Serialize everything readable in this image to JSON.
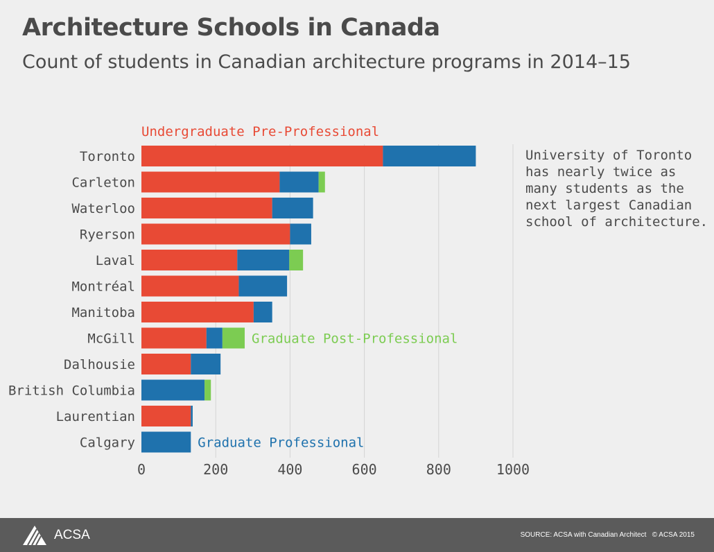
{
  "header": {
    "title": "Architecture Schools in Canada",
    "subtitle": "Count of students in Canadian architecture programs in 2014–15"
  },
  "annotation": {
    "lines": [
      "University of Toronto",
      "has nearly twice as",
      "many students as the",
      "next largest Canadian",
      "school of architecture."
    ]
  },
  "footer": {
    "logo_text": "ACSA",
    "source": "SOURCE: ACSA with Canadian Architect",
    "copyright": "© ACSA 2015"
  },
  "chart_data": {
    "type": "bar",
    "orientation": "horizontal",
    "stacked": true,
    "categories": [
      "Toronto",
      "Carleton",
      "Waterloo",
      "Ryerson",
      "Laval",
      "Montréal",
      "Manitoba",
      "McGill",
      "Dalhousie",
      "British Columbia",
      "Laurentian",
      "Calgary"
    ],
    "series": [
      {
        "name": "Undergraduate Pre-Professional",
        "color": "#e84a35",
        "values": [
          650,
          372,
          352,
          400,
          258,
          262,
          302,
          175,
          133,
          0,
          133,
          0
        ]
      },
      {
        "name": "Graduate Professional",
        "color": "#1f72ad",
        "values": [
          250,
          105,
          110,
          57,
          140,
          130,
          50,
          43,
          80,
          170,
          5,
          133
        ]
      },
      {
        "name": "Graduate Post-Professional",
        "color": "#7ccc52",
        "values": [
          0,
          17,
          0,
          0,
          37,
          0,
          0,
          60,
          0,
          17,
          0,
          0
        ]
      }
    ],
    "series_labels": [
      {
        "text": "Undergraduate Pre-Professional",
        "color": "#e84a35",
        "anchor": "above-first-bar"
      },
      {
        "text": "Graduate Post-Professional",
        "color": "#7ccc52",
        "anchor": "McGill"
      },
      {
        "text": "Graduate Professional",
        "color": "#1f72ad",
        "anchor": "Calgary"
      }
    ],
    "xlim": [
      0,
      1000
    ],
    "xticks": [
      0,
      200,
      400,
      600,
      800,
      1000
    ],
    "grid": true,
    "gridline_color": "#d4d4d4"
  }
}
